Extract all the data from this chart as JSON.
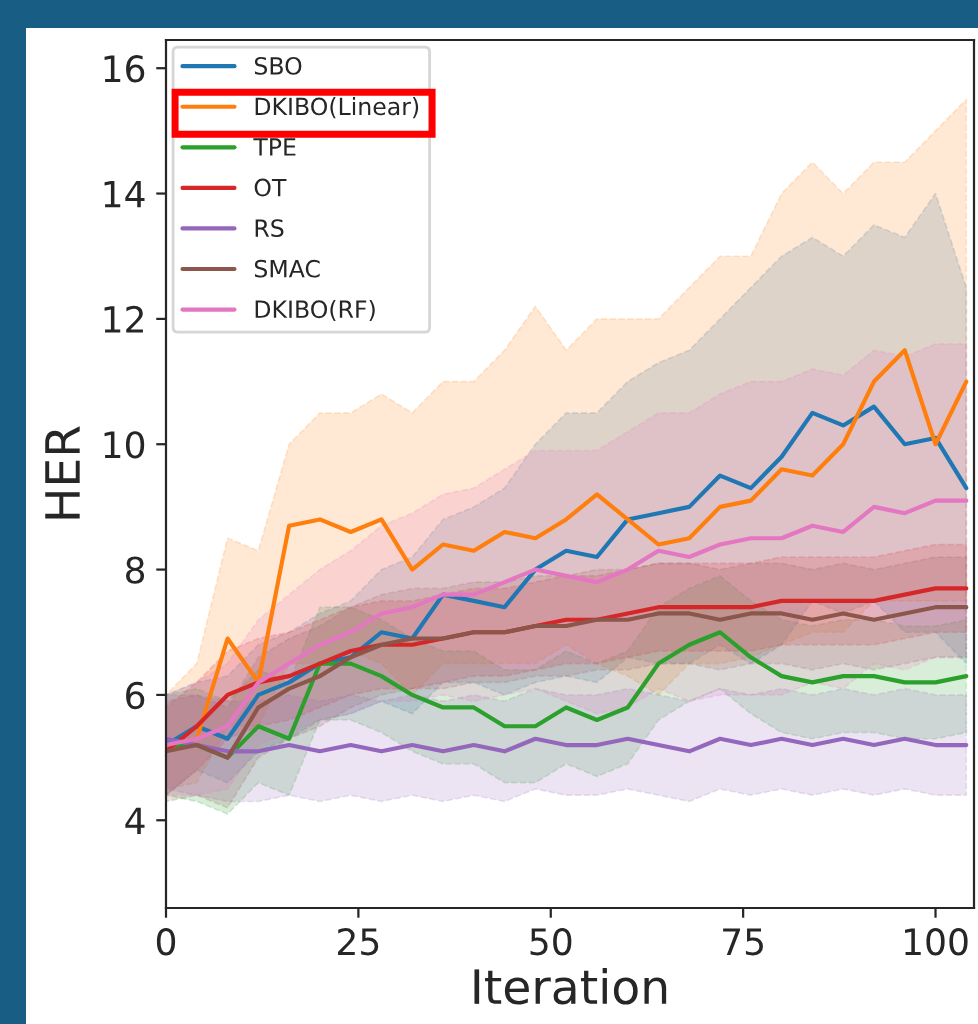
{
  "chart_data": {
    "type": "line",
    "xlabel": "Iteration",
    "ylabel": "HER",
    "x": [
      0,
      4,
      8,
      12,
      16,
      20,
      24,
      28,
      32,
      36,
      40,
      44,
      48,
      52,
      56,
      60,
      64,
      68,
      72,
      76,
      80,
      84,
      88,
      92,
      96,
      100,
      104
    ],
    "xlim": [
      0,
      105
    ],
    "xticks": [
      0,
      25,
      50,
      75,
      100
    ],
    "ylim": [
      2.6,
      16.45
    ],
    "yticks": [
      4,
      6,
      8,
      10,
      12,
      14,
      16
    ],
    "grid": false,
    "legend": "top left",
    "marker": "none",
    "line_style": "solid",
    "series": [
      {
        "name": "SBO",
        "color": "#1f77b4",
        "values": [
          5.2,
          5.5,
          5.3,
          6.0,
          6.2,
          6.5,
          6.6,
          7.0,
          6.9,
          7.6,
          7.5,
          7.4,
          8.0,
          8.3,
          8.2,
          8.8,
          8.9,
          9.0,
          9.5,
          9.3,
          9.8,
          10.5,
          10.3,
          10.6,
          10.0,
          10.1,
          9.3
        ],
        "upper": [
          6,
          6.2,
          6.3,
          6.8,
          7,
          7.3,
          7.5,
          8,
          8.2,
          8.8,
          9,
          9.3,
          10,
          10.5,
          10.5,
          11,
          11.3,
          11.5,
          12,
          12.5,
          13,
          13.3,
          13,
          13.5,
          13.3,
          14,
          12.5
        ],
        "lower": [
          4.4,
          4.8,
          4.6,
          5.1,
          5.3,
          5.6,
          5.7,
          5.9,
          5.7,
          6.2,
          6.2,
          6.0,
          6.2,
          6.3,
          6.2,
          6.6,
          6.5,
          6.5,
          6.8,
          6.5,
          6.8,
          7.5,
          7.3,
          7.5,
          7,
          7,
          6.5
        ]
      },
      {
        "name": "DKIBO(Linear)",
        "color": "#ff7f0e",
        "values": [
          5.2,
          5.3,
          6.9,
          6.2,
          8.7,
          8.8,
          8.6,
          8.8,
          8.0,
          8.4,
          8.3,
          8.6,
          8.5,
          8.8,
          9.2,
          8.8,
          8.4,
          8.5,
          9.0,
          9.1,
          9.6,
          9.5,
          10.0,
          11.0,
          11.5,
          10.0,
          11.0
        ],
        "upper": [
          6,
          6.5,
          8.5,
          8.3,
          10,
          10.5,
          10.5,
          10.8,
          10.5,
          11,
          11,
          11.5,
          12.2,
          11.5,
          12,
          12,
          12,
          12.5,
          13,
          13,
          14,
          14.5,
          14,
          14.5,
          14.5,
          15,
          15.5
        ],
        "lower": [
          4.5,
          4.6,
          5.5,
          5.5,
          6.5,
          6.5,
          6.7,
          6.5,
          6.0,
          6.5,
          6.5,
          6.5,
          6.5,
          6.8,
          6.5,
          6.3,
          6.0,
          6.5,
          6.5,
          6.6,
          6.8,
          7,
          7,
          7.5,
          7.5,
          7.5,
          7.5
        ]
      },
      {
        "name": "TPE",
        "color": "#2ca02c",
        "values": [
          5.2,
          5.2,
          5.0,
          5.5,
          5.3,
          6.5,
          6.5,
          6.3,
          6.0,
          5.8,
          5.8,
          5.5,
          5.5,
          5.8,
          5.6,
          5.8,
          6.5,
          6.8,
          7.0,
          6.6,
          6.3,
          6.2,
          6.3,
          6.3,
          6.2,
          6.2,
          6.3
        ],
        "upper": [
          6.0,
          6.1,
          5.9,
          6.4,
          6.2,
          7.4,
          7.4,
          7.2,
          6.9,
          6.7,
          6.7,
          6.4,
          6.4,
          6.7,
          6.5,
          6.7,
          7.4,
          7.7,
          7.9,
          7.5,
          7.2,
          7.1,
          7.2,
          7.2,
          7.1,
          7.1,
          7.2
        ],
        "lower": [
          4.4,
          4.3,
          4.1,
          4.6,
          4.4,
          5.6,
          5.6,
          5.4,
          5.1,
          4.9,
          4.9,
          4.6,
          4.6,
          4.9,
          4.7,
          4.9,
          5.6,
          5.9,
          6.1,
          5.7,
          5.4,
          5.3,
          5.4,
          5.4,
          5.3,
          5.3,
          5.4
        ]
      },
      {
        "name": "OT",
        "color": "#d62728",
        "values": [
          5.1,
          5.5,
          6.0,
          6.2,
          6.3,
          6.5,
          6.7,
          6.8,
          6.8,
          6.9,
          7.0,
          7.0,
          7.1,
          7.2,
          7.2,
          7.3,
          7.4,
          7.4,
          7.4,
          7.4,
          7.5,
          7.5,
          7.5,
          7.5,
          7.6,
          7.7,
          7.7
        ],
        "upper": [
          5.8,
          6.2,
          6.7,
          6.9,
          7.0,
          7.2,
          7.4,
          7.5,
          7.5,
          7.6,
          7.7,
          7.7,
          7.8,
          7.9,
          7.9,
          8.0,
          8.1,
          8.1,
          8.1,
          8.1,
          8.2,
          8.2,
          8.2,
          8.2,
          8.3,
          8.4,
          8.4
        ],
        "lower": [
          4.4,
          4.8,
          5.3,
          5.5,
          5.6,
          5.8,
          6.0,
          6.1,
          6.1,
          6.2,
          6.3,
          6.3,
          6.4,
          6.5,
          6.5,
          6.6,
          6.7,
          6.7,
          6.7,
          6.7,
          6.8,
          6.8,
          6.8,
          6.8,
          6.9,
          7.0,
          7.0
        ]
      },
      {
        "name": "RS",
        "color": "#9467bd",
        "values": [
          5.3,
          5.2,
          5.1,
          5.1,
          5.2,
          5.1,
          5.2,
          5.1,
          5.2,
          5.1,
          5.2,
          5.1,
          5.3,
          5.2,
          5.2,
          5.3,
          5.2,
          5.1,
          5.3,
          5.2,
          5.3,
          5.2,
          5.3,
          5.2,
          5.3,
          5.2,
          5.2
        ],
        "upper": [
          6.0,
          6.0,
          5.9,
          5.9,
          6.0,
          5.9,
          6.0,
          5.9,
          6.0,
          5.9,
          6.0,
          5.9,
          6.1,
          6.0,
          6.0,
          6.1,
          6.0,
          5.9,
          6.1,
          6.0,
          6.1,
          6.0,
          6.1,
          6.0,
          6.1,
          6.0,
          6.0
        ],
        "lower": [
          4.5,
          4.4,
          4.3,
          4.3,
          4.4,
          4.3,
          4.4,
          4.3,
          4.4,
          4.3,
          4.4,
          4.3,
          4.5,
          4.4,
          4.4,
          4.5,
          4.4,
          4.3,
          4.5,
          4.4,
          4.5,
          4.4,
          4.5,
          4.4,
          4.5,
          4.4,
          4.4
        ]
      },
      {
        "name": "SMAC",
        "color": "#8c564b",
        "values": [
          5.1,
          5.2,
          5.0,
          5.8,
          6.1,
          6.3,
          6.6,
          6.8,
          6.9,
          6.9,
          7.0,
          7.0,
          7.1,
          7.1,
          7.2,
          7.2,
          7.3,
          7.3,
          7.2,
          7.3,
          7.3,
          7.2,
          7.3,
          7.2,
          7.3,
          7.4,
          7.4
        ],
        "upper": [
          5.9,
          6.0,
          5.8,
          6.6,
          6.9,
          7.1,
          7.4,
          7.6,
          7.7,
          7.7,
          7.8,
          7.8,
          7.9,
          7.9,
          8.0,
          8.0,
          8.1,
          8.1,
          8.0,
          8.1,
          8.1,
          8.0,
          8.1,
          8.0,
          8.1,
          8.2,
          8.2
        ],
        "lower": [
          4.3,
          4.4,
          4.2,
          5.0,
          5.3,
          5.5,
          5.8,
          6.0,
          6.1,
          6.1,
          6.2,
          6.2,
          6.3,
          6.3,
          6.4,
          6.4,
          6.5,
          6.5,
          6.4,
          6.5,
          6.5,
          6.4,
          6.5,
          6.4,
          6.5,
          6.6,
          6.6
        ]
      },
      {
        "name": "DKIBO(RF)",
        "color": "#e377c2",
        "values": [
          5.2,
          5.3,
          5.5,
          6.2,
          6.5,
          6.8,
          7.0,
          7.3,
          7.4,
          7.6,
          7.6,
          7.8,
          8.0,
          7.9,
          7.8,
          8.0,
          8.3,
          8.2,
          8.4,
          8.5,
          8.5,
          8.7,
          8.6,
          9.0,
          8.9,
          9.1,
          9.1
        ],
        "upper": [
          6.0,
          6.2,
          6.5,
          7.2,
          7.6,
          8.0,
          8.3,
          8.7,
          8.9,
          9.2,
          9.3,
          9.6,
          9.9,
          9.9,
          9.9,
          10.2,
          10.5,
          10.5,
          10.8,
          11.0,
          11.0,
          11.2,
          11.1,
          11.5,
          11.4,
          11.6,
          11.6
        ],
        "lower": [
          4.4,
          4.4,
          4.5,
          5.2,
          5.4,
          5.6,
          5.7,
          5.9,
          5.9,
          6.0,
          5.9,
          6.0,
          6.1,
          5.9,
          5.7,
          5.8,
          6.1,
          5.9,
          6.0,
          6.0,
          6.0,
          6.2,
          6.1,
          6.5,
          6.4,
          6.6,
          6.6
        ]
      }
    ]
  }
}
